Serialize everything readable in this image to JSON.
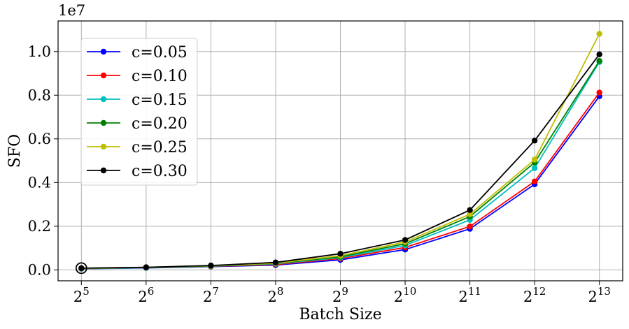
{
  "chart_data": {
    "type": "line",
    "xlabel": "Batch Size",
    "ylabel": "SFO",
    "y_scale_label": "1e7",
    "x_base": "2",
    "x_exponents": [
      "5",
      "6",
      "7",
      "8",
      "9",
      "10",
      "11",
      "12",
      "13"
    ],
    "x": [
      32,
      64,
      128,
      256,
      512,
      1024,
      2048,
      4096,
      8192
    ],
    "x_scale": "log2",
    "y_unit": 10000000,
    "ylim": [
      -0.05,
      1.14
    ],
    "yticks": [
      "0.0",
      "0.2",
      "0.4",
      "0.6",
      "0.8",
      "1.0"
    ],
    "ytick_values": [
      0.0,
      0.2,
      0.4,
      0.6,
      0.8,
      1.0
    ],
    "grid": true,
    "legend_position": "upper-left",
    "highlight_point": {
      "x": 32,
      "y": 0.008
    },
    "series": [
      {
        "name": "c=0.05",
        "color": "#0000ff",
        "values": [
          0.005,
          0.009,
          0.015,
          0.022,
          0.046,
          0.093,
          0.188,
          0.392,
          0.795
        ]
      },
      {
        "name": "c=0.10",
        "color": "#ff0000",
        "values": [
          0.006,
          0.01,
          0.016,
          0.025,
          0.052,
          0.103,
          0.199,
          0.405,
          0.812
        ]
      },
      {
        "name": "c=0.15",
        "color": "#00bfbf",
        "values": [
          0.006,
          0.01,
          0.017,
          0.028,
          0.056,
          0.112,
          0.229,
          0.466,
          0.952
        ]
      },
      {
        "name": "c=0.20",
        "color": "#008000",
        "values": [
          0.007,
          0.011,
          0.018,
          0.03,
          0.06,
          0.12,
          0.244,
          0.492,
          0.957
        ]
      },
      {
        "name": "c=0.25",
        "color": "#bfbf00",
        "values": [
          0.007,
          0.012,
          0.019,
          0.031,
          0.065,
          0.128,
          0.255,
          0.505,
          1.081
        ]
      },
      {
        "name": "c=0.30",
        "color": "#000000",
        "values": [
          0.008,
          0.012,
          0.02,
          0.034,
          0.074,
          0.137,
          0.274,
          0.592,
          0.987
        ]
      }
    ]
  }
}
